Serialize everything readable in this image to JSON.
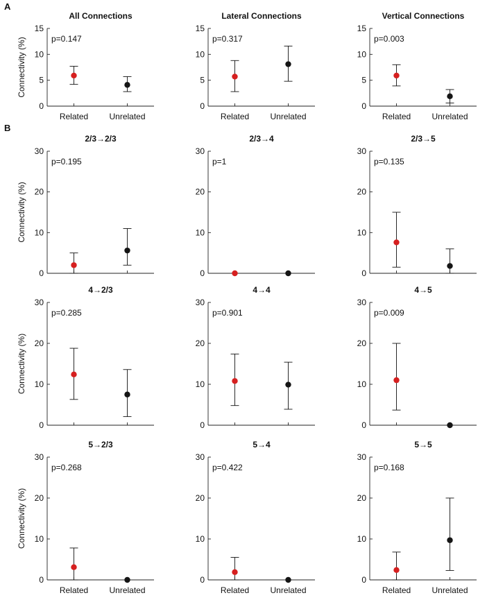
{
  "figure": {
    "panel_labels": [
      "A",
      "B"
    ]
  },
  "colors": {
    "related": "#d62020",
    "unrelated": "#151515",
    "axis": "#222222"
  },
  "common": {
    "xlabel_related": "Related",
    "xlabel_unrelated": "Unrelated",
    "ylabel": "Connectivity (%)"
  },
  "chart_data": [
    {
      "type": "scatter",
      "title": "All Connections",
      "pvalue": "p=0.147",
      "categories": [
        "Related",
        "Unrelated"
      ],
      "ylabel": "Connectivity (%)",
      "ylim": [
        0,
        15
      ],
      "yticks": [
        0,
        5,
        10,
        15
      ],
      "series": [
        {
          "name": "Related",
          "value": 5.9,
          "err_low": 4.2,
          "err_high": 7.7
        },
        {
          "name": "Unrelated",
          "value": 4.1,
          "err_low": 2.8,
          "err_high": 5.7
        }
      ]
    },
    {
      "type": "scatter",
      "title": "Lateral Connections",
      "pvalue": "p=0.317",
      "categories": [
        "Related",
        "Unrelated"
      ],
      "ylabel": "",
      "ylim": [
        0,
        15
      ],
      "yticks": [
        0,
        5,
        10,
        15
      ],
      "series": [
        {
          "name": "Related",
          "value": 5.7,
          "err_low": 2.8,
          "err_high": 8.8
        },
        {
          "name": "Unrelated",
          "value": 8.1,
          "err_low": 4.8,
          "err_high": 11.6
        }
      ]
    },
    {
      "type": "scatter",
      "title": "Vertical Connections",
      "pvalue": "p=0.003",
      "categories": [
        "Related",
        "Unrelated"
      ],
      "ylabel": "",
      "ylim": [
        0,
        15
      ],
      "yticks": [
        0,
        5,
        10,
        15
      ],
      "series": [
        {
          "name": "Related",
          "value": 5.9,
          "err_low": 3.9,
          "err_high": 8.0
        },
        {
          "name": "Unrelated",
          "value": 1.9,
          "err_low": 0.6,
          "err_high": 3.2
        }
      ]
    },
    {
      "type": "scatter",
      "title": "2/3→2/3",
      "pvalue": "p=0.195",
      "categories": [
        "Related",
        "Unrelated"
      ],
      "ylabel": "Connectivity (%)",
      "ylim": [
        0,
        30
      ],
      "yticks": [
        0,
        10,
        20,
        30
      ],
      "series": [
        {
          "name": "Related",
          "value": 2.0,
          "err_low": 0.0,
          "err_high": 5.0
        },
        {
          "name": "Unrelated",
          "value": 5.6,
          "err_low": 2.0,
          "err_high": 11.0
        }
      ]
    },
    {
      "type": "scatter",
      "title": "2/3→4",
      "pvalue": "p=1",
      "categories": [
        "Related",
        "Unrelated"
      ],
      "ylabel": "",
      "ylim": [
        0,
        30
      ],
      "yticks": [
        0,
        10,
        20,
        30
      ],
      "series": [
        {
          "name": "Related",
          "value": 0.0,
          "err_low": 0.0,
          "err_high": 0.0
        },
        {
          "name": "Unrelated",
          "value": 0.0,
          "err_low": 0.0,
          "err_high": 0.0
        }
      ]
    },
    {
      "type": "scatter",
      "title": "2/3→5",
      "pvalue": "p=0.135",
      "categories": [
        "Related",
        "Unrelated"
      ],
      "ylabel": "",
      "ylim": [
        0,
        30
      ],
      "yticks": [
        0,
        10,
        20,
        30
      ],
      "series": [
        {
          "name": "Related",
          "value": 7.6,
          "err_low": 1.5,
          "err_high": 15.0
        },
        {
          "name": "Unrelated",
          "value": 1.8,
          "err_low": 0.0,
          "err_high": 6.0
        }
      ]
    },
    {
      "type": "scatter",
      "title": "4→2/3",
      "pvalue": "p=0.285",
      "categories": [
        "Related",
        "Unrelated"
      ],
      "ylabel": "Connectivity (%)",
      "ylim": [
        0,
        30
      ],
      "yticks": [
        0,
        10,
        20,
        30
      ],
      "series": [
        {
          "name": "Related",
          "value": 12.4,
          "err_low": 6.3,
          "err_high": 18.8
        },
        {
          "name": "Unrelated",
          "value": 7.5,
          "err_low": 2.1,
          "err_high": 13.6
        }
      ]
    },
    {
      "type": "scatter",
      "title": "4→4",
      "pvalue": "p=0.901",
      "categories": [
        "Related",
        "Unrelated"
      ],
      "ylabel": "",
      "ylim": [
        0,
        30
      ],
      "yticks": [
        0,
        10,
        20,
        30
      ],
      "series": [
        {
          "name": "Related",
          "value": 10.8,
          "err_low": 4.8,
          "err_high": 17.4
        },
        {
          "name": "Unrelated",
          "value": 9.9,
          "err_low": 3.9,
          "err_high": 15.4
        }
      ]
    },
    {
      "type": "scatter",
      "title": "4→5",
      "pvalue": "p=0.009",
      "categories": [
        "Related",
        "Unrelated"
      ],
      "ylabel": "",
      "ylim": [
        0,
        30
      ],
      "yticks": [
        0,
        10,
        20,
        30
      ],
      "series": [
        {
          "name": "Related",
          "value": 11.0,
          "err_low": 3.7,
          "err_high": 20.0
        },
        {
          "name": "Unrelated",
          "value": 0.0,
          "err_low": 0.0,
          "err_high": 0.0
        }
      ]
    },
    {
      "type": "scatter",
      "title": "5→2/3",
      "pvalue": "p=0.268",
      "categories": [
        "Related",
        "Unrelated"
      ],
      "ylabel": "Connectivity (%)",
      "ylim": [
        0,
        30
      ],
      "yticks": [
        0,
        10,
        20,
        30
      ],
      "series": [
        {
          "name": "Related",
          "value": 3.1,
          "err_low": 0.0,
          "err_high": 7.8
        },
        {
          "name": "Unrelated",
          "value": 0.0,
          "err_low": 0.0,
          "err_high": 0.0
        }
      ]
    },
    {
      "type": "scatter",
      "title": "5→4",
      "pvalue": "p=0.422",
      "categories": [
        "Related",
        "Unrelated"
      ],
      "ylabel": "",
      "ylim": [
        0,
        30
      ],
      "yticks": [
        0,
        10,
        20,
        30
      ],
      "series": [
        {
          "name": "Related",
          "value": 1.9,
          "err_low": 0.0,
          "err_high": 5.5
        },
        {
          "name": "Unrelated",
          "value": 0.0,
          "err_low": 0.0,
          "err_high": 0.0
        }
      ]
    },
    {
      "type": "scatter",
      "title": "5→5",
      "pvalue": "p=0.168",
      "categories": [
        "Related",
        "Unrelated"
      ],
      "ylabel": "",
      "ylim": [
        0,
        30
      ],
      "yticks": [
        0,
        10,
        20,
        30
      ],
      "series": [
        {
          "name": "Related",
          "value": 2.4,
          "err_low": 0.0,
          "err_high": 6.8
        },
        {
          "name": "Unrelated",
          "value": 9.7,
          "err_low": 2.3,
          "err_high": 20.0
        }
      ]
    }
  ]
}
